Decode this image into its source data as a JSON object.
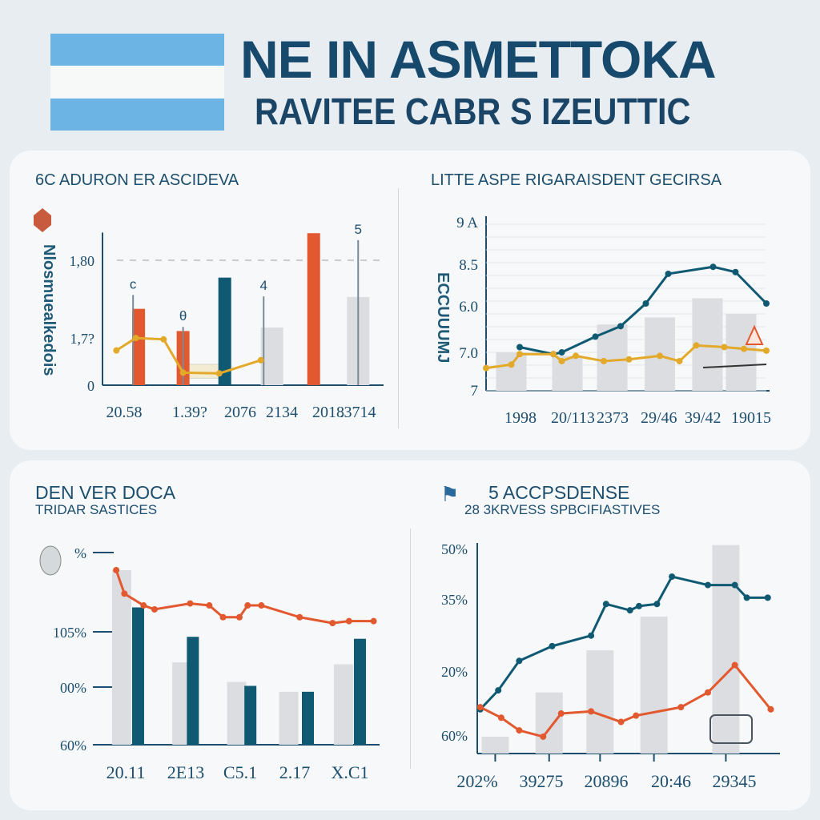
{
  "header": {
    "title_line1": "NE IN ASMETTOKA",
    "title_line2": "RAVITEE CABR S IZEUTTIC",
    "flag_colors": {
      "blue": "#6cb4e4",
      "white": "#f7f8f8",
      "sun": "#f2b318"
    }
  },
  "colors": {
    "teal": "#0f5a72",
    "orange": "#e2582f",
    "yellow": "#e3a92a",
    "gray": "#dcdde0",
    "axis": "#1d4e6e"
  },
  "chart_data": [
    {
      "id": "chart1",
      "type": "bar",
      "title": "6C ADURON ER ASCIDEVA",
      "ylabel": "Nlosmuealkedois",
      "yticks": [
        "1,80",
        "1,7?",
        "0"
      ],
      "xtick_labels": [
        "20.58",
        "1.39?",
        "2076",
        "2134",
        "2018",
        ".3714"
      ],
      "xlim": [
        0,
        100
      ],
      "ylim": [
        0,
        2.2
      ],
      "reference_line": 1.8,
      "bars": [
        {
          "x": 13,
          "value": 1.1,
          "color": "orange"
        },
        {
          "x": 29,
          "value": 0.78,
          "color": "orange"
        },
        {
          "x": 44,
          "value": 1.55,
          "color": "teal"
        },
        {
          "x": 61,
          "value": 0.83,
          "color": "gray"
        },
        {
          "x": 76,
          "value": 2.19,
          "color": "orange"
        },
        {
          "x": 92,
          "value": 1.27,
          "color": "gray"
        }
      ],
      "markers": [
        {
          "x": 11,
          "value": 1.3,
          "label": "c"
        },
        {
          "x": 29,
          "value": 0.84,
          "label": "θ"
        },
        {
          "x": 58,
          "value": 1.28,
          "label": "4"
        },
        {
          "x": 92,
          "value": 2.09,
          "label": "5"
        }
      ],
      "line": {
        "color": "yellow",
        "points": [
          [
            5,
            0.5
          ],
          [
            12,
            0.68
          ],
          [
            22,
            0.66
          ],
          [
            29,
            0.18
          ],
          [
            42,
            0.17
          ],
          [
            57,
            0.36
          ]
        ]
      }
    },
    {
      "id": "chart2",
      "type": "line",
      "title": "LITTE ASPE RIGARAISDENT GECIRSA",
      "ylabel": "ECCUUUMJ",
      "yticks": [
        "9 A",
        "8.5",
        "6.0",
        "7.0",
        "7"
      ],
      "xtick_labels": [
        "1998",
        "20/113",
        "2373",
        "29/46",
        "39/42",
        "19015"
      ],
      "xlim": [
        0,
        100
      ],
      "ylim": [
        0,
        100
      ],
      "bars": [
        {
          "x": 9,
          "value": 22
        },
        {
          "x": 29,
          "value": 20
        },
        {
          "x": 45,
          "value": 38
        },
        {
          "x": 62,
          "value": 42
        },
        {
          "x": 79,
          "value": 53
        },
        {
          "x": 91,
          "value": 44
        }
      ],
      "series": [
        {
          "color": "teal",
          "points": [
            [
              12,
              25
            ],
            [
              24,
              21
            ],
            [
              27,
              22
            ],
            [
              39,
              31
            ],
            [
              48,
              37
            ],
            [
              57,
              50
            ],
            [
              65,
              67
            ],
            [
              81,
              71
            ],
            [
              89,
              68
            ],
            [
              100,
              50
            ]
          ]
        },
        {
          "color": "yellow",
          "points": [
            [
              0,
              13
            ],
            [
              9,
              15
            ],
            [
              12,
              21
            ],
            [
              24,
              21
            ],
            [
              27,
              17
            ],
            [
              32,
              20
            ],
            [
              42,
              17
            ],
            [
              51,
              18
            ],
            [
              62,
              20
            ],
            [
              69,
              17
            ],
            [
              75,
              26
            ],
            [
              85,
              25
            ],
            [
              92,
              24
            ],
            [
              100,
              23
            ]
          ]
        }
      ]
    },
    {
      "id": "chart3",
      "type": "bar",
      "title": "DEN VER DOCA",
      "subtitle": "TRIDAR SASTICES",
      "yticks": [
        "%",
        "105%",
        "00%",
        "60%"
      ],
      "xtick_labels": [
        "20.11",
        "2E13",
        "C5.1",
        "2.17",
        "X.C1"
      ],
      "xlim": [
        0,
        100
      ],
      "ylim": [
        0,
        100
      ],
      "gray_bars": [
        {
          "x": 7,
          "value": 89
        },
        {
          "x": 29,
          "value": 42
        },
        {
          "x": 49,
          "value": 32
        },
        {
          "x": 68,
          "value": 27
        },
        {
          "x": 88,
          "value": 41
        }
      ],
      "teal_bars": [
        {
          "x": 13,
          "value": 70
        },
        {
          "x": 33,
          "value": 55
        },
        {
          "x": 54,
          "value": 30
        },
        {
          "x": 75,
          "value": 27
        },
        {
          "x": 94,
          "value": 54
        }
      ],
      "line": {
        "color": "orange",
        "points": [
          [
            5,
            89
          ],
          [
            8,
            77
          ],
          [
            15,
            71
          ],
          [
            19,
            69
          ],
          [
            32,
            72
          ],
          [
            39,
            71
          ],
          [
            44,
            65
          ],
          [
            50,
            65
          ],
          [
            53,
            71
          ],
          [
            58,
            71
          ],
          [
            72,
            65
          ],
          [
            84,
            62
          ],
          [
            90,
            63
          ],
          [
            99,
            63
          ]
        ]
      }
    },
    {
      "id": "chart4",
      "type": "line",
      "title": "5 ACCPSDENSE",
      "subtitle": "28 3KRVESS SPBCIFIASTIVES",
      "yticks": [
        "50%",
        "35%",
        "20%",
        "60%"
      ],
      "xtick_labels": [
        "202%",
        "39275",
        "20896",
        "20:46",
        "29345"
      ],
      "xlim": [
        0,
        100
      ],
      "ylim": [
        0,
        100
      ],
      "bars": [
        {
          "x": 6,
          "value": 8
        },
        {
          "x": 24,
          "value": 29
        },
        {
          "x": 41,
          "value": 49
        },
        {
          "x": 59,
          "value": 65
        },
        {
          "x": 83,
          "value": 99
        }
      ],
      "series": [
        {
          "color": "teal",
          "points": [
            [
              1,
              21
            ],
            [
              7,
              30
            ],
            [
              14,
              44
            ],
            [
              25,
              51
            ],
            [
              38,
              56
            ],
            [
              43,
              71
            ],
            [
              51,
              68
            ],
            [
              54,
              70
            ],
            [
              60,
              71
            ],
            [
              65,
              84
            ],
            [
              77,
              80
            ],
            [
              86,
              80
            ],
            [
              90,
              74
            ],
            [
              97,
              74
            ]
          ]
        },
        {
          "color": "orange",
          "points": [
            [
              1,
              22
            ],
            [
              8,
              17
            ],
            [
              14,
              11
            ],
            [
              22,
              8
            ],
            [
              28,
              19
            ],
            [
              38,
              20
            ],
            [
              48,
              15
            ],
            [
              53,
              18
            ],
            [
              68,
              22
            ],
            [
              77,
              29
            ],
            [
              86,
              42
            ],
            [
              98,
              21
            ]
          ]
        }
      ]
    }
  ]
}
